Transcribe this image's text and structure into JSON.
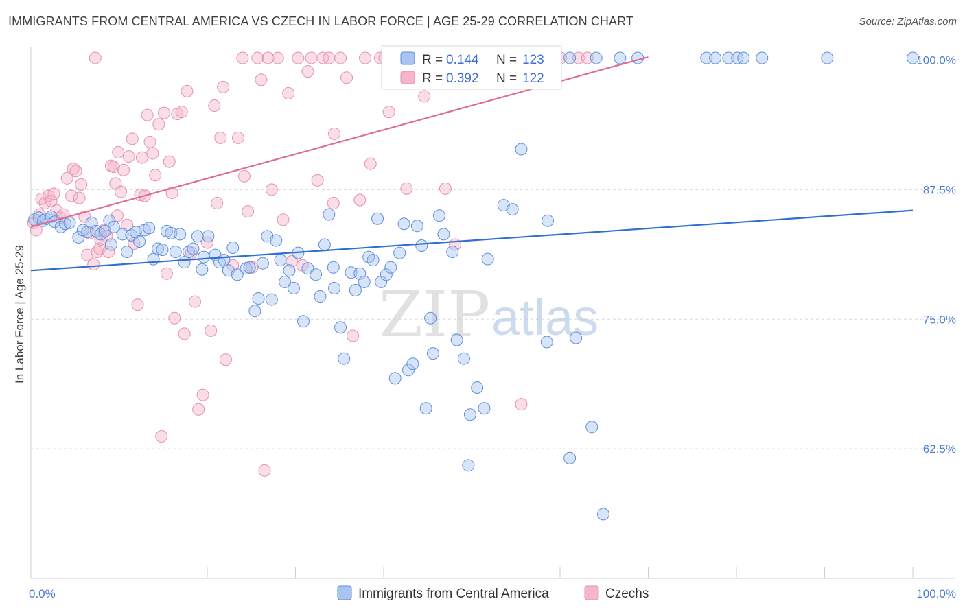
{
  "title": "IMMIGRANTS FROM CENTRAL AMERICA VS CZECH IN LABOR FORCE | AGE 25-29 CORRELATION CHART",
  "source": "Source: ZipAtlas.com",
  "watermark": {
    "zip": "ZIP",
    "atlas": "atlas"
  },
  "colors": {
    "blue_fill": "#a9c4ef",
    "blue_stroke": "#5e8fdc",
    "blue_line": "#2f6fd3",
    "pink_fill": "#f5b5ca",
    "pink_stroke": "#e88fad",
    "pink_line": "#e06b96",
    "grid": "#d9d9d9",
    "tick_text": "#4a7dd0"
  },
  "legend": {
    "rows": [
      {
        "r_label": "R = ",
        "r_value": "0.144",
        "n_label": "N = ",
        "n_value": "123",
        "series": "blue"
      },
      {
        "r_label": "R = ",
        "r_value": "0.392",
        "n_label": "N = ",
        "n_value": "122",
        "series": "pink"
      }
    ]
  },
  "chart_data": {
    "type": "scatter",
    "title": "IMMIGRANTS FROM CENTRAL AMERICA VS CZECH IN LABOR FORCE | AGE 25-29 CORRELATION CHART",
    "xlabel": "",
    "ylabel": "In Labor Force | Age 25-29",
    "xlim": [
      0,
      100
    ],
    "ylim": [
      50,
      100.5
    ],
    "x_tick_labels": [
      {
        "value": 0,
        "label": "0.0%"
      },
      {
        "value": 100,
        "label": "100.0%"
      }
    ],
    "y_tick_labels": [
      {
        "value": 100,
        "label": "100.0%"
      },
      {
        "value": 87.5,
        "label": "87.5%"
      },
      {
        "value": 75,
        "label": "75.0%"
      },
      {
        "value": 62.5,
        "label": "62.5%"
      }
    ],
    "grid": true,
    "legend_position": "top-center",
    "series": [
      {
        "name": "Immigrants from Central America",
        "color": "#a9c4ef",
        "R": 0.144,
        "N": 123,
        "trend": {
          "x0": 0,
          "y0": 79.7,
          "x1": 100,
          "y1": 85.5
        },
        "points": [
          [
            0.4,
            84.6
          ],
          [
            0.9,
            84.8
          ],
          [
            1.4,
            84.5
          ],
          [
            1.7,
            84.7
          ],
          [
            2.3,
            84.9
          ],
          [
            2.7,
            84.4
          ],
          [
            3.4,
            83.9
          ],
          [
            3.9,
            84.2
          ],
          [
            4.4,
            84.3
          ],
          [
            5.4,
            82.9
          ],
          [
            5.9,
            83.6
          ],
          [
            6.4,
            83.4
          ],
          [
            6.9,
            84.3
          ],
          [
            7.4,
            83.5
          ],
          [
            7.9,
            83.2
          ],
          [
            8.4,
            83.5
          ],
          [
            8.9,
            84.5
          ],
          [
            9.1,
            82.2
          ],
          [
            9.4,
            83.9
          ],
          [
            10.4,
            83.2
          ],
          [
            10.9,
            81.5
          ],
          [
            11.4,
            83.1
          ],
          [
            11.9,
            83.4
          ],
          [
            12.3,
            82.5
          ],
          [
            12.9,
            83.6
          ],
          [
            13.4,
            83.8
          ],
          [
            13.9,
            80.8
          ],
          [
            14.4,
            81.8
          ],
          [
            14.9,
            81.7
          ],
          [
            15.4,
            83.5
          ],
          [
            15.9,
            83.3
          ],
          [
            16.4,
            81.5
          ],
          [
            16.9,
            83.2
          ],
          [
            17.4,
            80.5
          ],
          [
            17.9,
            81.5
          ],
          [
            18.4,
            81.8
          ],
          [
            18.9,
            83
          ],
          [
            19.4,
            79.8
          ],
          [
            19.6,
            81
          ],
          [
            20.1,
            83
          ],
          [
            20.9,
            81.2
          ],
          [
            21.4,
            80.5
          ],
          [
            21.9,
            80.7
          ],
          [
            22.4,
            79.7
          ],
          [
            22.9,
            81.9
          ],
          [
            23.4,
            79.3
          ],
          [
            24.4,
            79.9
          ],
          [
            24.8,
            80
          ],
          [
            25.4,
            75.8
          ],
          [
            25.8,
            77
          ],
          [
            26.3,
            80.4
          ],
          [
            26.8,
            83
          ],
          [
            27.3,
            76.9
          ],
          [
            27.8,
            82.6
          ],
          [
            28.3,
            80.7
          ],
          [
            28.8,
            78.6
          ],
          [
            29.3,
            79.7
          ],
          [
            29.8,
            78
          ],
          [
            30.3,
            81.4
          ],
          [
            30.9,
            74.8
          ],
          [
            31.4,
            79.9
          ],
          [
            32.3,
            79.3
          ],
          [
            32.8,
            77.2
          ],
          [
            33.3,
            82.2
          ],
          [
            33.8,
            85.1
          ],
          [
            34.3,
            80
          ],
          [
            34.4,
            78
          ],
          [
            35.1,
            74.2
          ],
          [
            35.5,
            71.2
          ],
          [
            36.3,
            79.5
          ],
          [
            36.8,
            77.8
          ],
          [
            37.3,
            79.4
          ],
          [
            37.8,
            78.6
          ],
          [
            38.3,
            81
          ],
          [
            38.8,
            80.7
          ],
          [
            39.3,
            84.7
          ],
          [
            39.7,
            78.6
          ],
          [
            40.3,
            79.3
          ],
          [
            40.8,
            80
          ],
          [
            41.3,
            69.3
          ],
          [
            41.8,
            81.4
          ],
          [
            42.3,
            84.2
          ],
          [
            42.8,
            70.1
          ],
          [
            43.3,
            70.7
          ],
          [
            43.8,
            84
          ],
          [
            44.3,
            82.1
          ],
          [
            44.8,
            66.4
          ],
          [
            45.3,
            75.1
          ],
          [
            45.6,
            71.7
          ],
          [
            46.3,
            85
          ],
          [
            46.8,
            83.2
          ],
          [
            47.8,
            81.5
          ],
          [
            48.3,
            73
          ],
          [
            49.1,
            71.2
          ],
          [
            49.8,
            65.8
          ],
          [
            50.6,
            68.4
          ],
          [
            51.4,
            66.4
          ],
          [
            51.8,
            80.8
          ],
          [
            53.6,
            86
          ],
          [
            54.6,
            85.6
          ],
          [
            55.6,
            91.4
          ],
          [
            58.5,
            72.8
          ],
          [
            58.6,
            84.5
          ],
          [
            61.1,
            61.6
          ],
          [
            61.8,
            73.2
          ],
          [
            63.6,
            64.6
          ],
          [
            64.9,
            56.2
          ],
          [
            47.1,
            100.2
          ],
          [
            51.8,
            100.2
          ],
          [
            57.6,
            100.2
          ],
          [
            61.1,
            100.2
          ],
          [
            64.1,
            100.2
          ],
          [
            66.8,
            100.2
          ],
          [
            68.8,
            100.2
          ],
          [
            76.6,
            100.2
          ],
          [
            77.6,
            100.2
          ],
          [
            79.1,
            100.2
          ],
          [
            80.1,
            100.2
          ],
          [
            80.8,
            100.2
          ],
          [
            82.9,
            100.2
          ],
          [
            90.3,
            100.2
          ],
          [
            100,
            100.2
          ],
          [
            49.6,
            60.9
          ]
        ]
      },
      {
        "name": "Czechs",
        "color": "#f5b5ca",
        "R": 0.392,
        "N": 122,
        "trend": {
          "x0": 0,
          "y0": 83.9,
          "x1": 70,
          "y1": 100.3
        },
        "points": [
          [
            0.3,
            84.3
          ],
          [
            0.6,
            83.6
          ],
          [
            1,
            85.1
          ],
          [
            1.2,
            86.6
          ],
          [
            1.6,
            86.2
          ],
          [
            2,
            86.9
          ],
          [
            2.3,
            86.4
          ],
          [
            2.6,
            87.1
          ],
          [
            2.9,
            85.5
          ],
          [
            3.3,
            84.8
          ],
          [
            3.7,
            85.1
          ],
          [
            4.1,
            88.6
          ],
          [
            4.6,
            86.9
          ],
          [
            4.8,
            89.5
          ],
          [
            5.1,
            89.3
          ],
          [
            5.5,
            86.7
          ],
          [
            5.7,
            88
          ],
          [
            6.1,
            84.9
          ],
          [
            6.4,
            81.2
          ],
          [
            6.7,
            83.3
          ],
          [
            7.1,
            80.3
          ],
          [
            7.5,
            81.5
          ],
          [
            7.8,
            81.8
          ],
          [
            8.3,
            83.6
          ],
          [
            8.6,
            83
          ],
          [
            8.8,
            81.5
          ],
          [
            9.1,
            89.8
          ],
          [
            9.4,
            89.7
          ],
          [
            9.6,
            88.1
          ],
          [
            9.9,
            91.1
          ],
          [
            10.2,
            87.3
          ],
          [
            10.5,
            89.4
          ],
          [
            10.9,
            84.1
          ],
          [
            11.1,
            90.7
          ],
          [
            11.5,
            92.4
          ],
          [
            11.7,
            82.3
          ],
          [
            12.1,
            76.4
          ],
          [
            12.4,
            87
          ],
          [
            12.6,
            90.6
          ],
          [
            12.9,
            86.9
          ],
          [
            13.2,
            94.7
          ],
          [
            13.5,
            92.1
          ],
          [
            13.8,
            91
          ],
          [
            14.1,
            88.9
          ],
          [
            14.5,
            93.8
          ],
          [
            14.8,
            63.7
          ],
          [
            15.1,
            94.9
          ],
          [
            15.4,
            79.4
          ],
          [
            15.7,
            90.2
          ],
          [
            16,
            87.2
          ],
          [
            16.3,
            75.1
          ],
          [
            16.6,
            94.8
          ],
          [
            17.1,
            95
          ],
          [
            17.4,
            73.6
          ],
          [
            17.7,
            97
          ],
          [
            18.2,
            81.4
          ],
          [
            18.6,
            76.7
          ],
          [
            19,
            66.3
          ],
          [
            19.5,
            67.7
          ],
          [
            20,
            82.4
          ],
          [
            20.4,
            73.9
          ],
          [
            20.8,
            95.6
          ],
          [
            21.1,
            86.2
          ],
          [
            21.5,
            92.5
          ],
          [
            21.8,
            97.4
          ],
          [
            22.1,
            71.1
          ],
          [
            22.9,
            80.2
          ],
          [
            23.5,
            92.5
          ],
          [
            24,
            100.2
          ],
          [
            24.2,
            88.8
          ],
          [
            24.6,
            85.4
          ],
          [
            25.1,
            80
          ],
          [
            25.7,
            100.2
          ],
          [
            26.1,
            98.1
          ],
          [
            26.5,
            60.4
          ],
          [
            26.9,
            100.2
          ],
          [
            27.3,
            87.5
          ],
          [
            28,
            100.2
          ],
          [
            28.6,
            84.6
          ],
          [
            29.2,
            96.8
          ],
          [
            29.6,
            80.6
          ],
          [
            30.3,
            100.2
          ],
          [
            30.8,
            80.2
          ],
          [
            31.4,
            98.9
          ],
          [
            31.8,
            100.2
          ],
          [
            32.5,
            88.4
          ],
          [
            33.1,
            100.2
          ],
          [
            33.8,
            100.2
          ],
          [
            34.3,
            86.2
          ],
          [
            35.1,
            100.2
          ],
          [
            35.8,
            98.3
          ],
          [
            36.5,
            73.4
          ],
          [
            37.3,
            86.5
          ],
          [
            37.9,
            100.2
          ],
          [
            38.5,
            90
          ],
          [
            39.6,
            100.2
          ],
          [
            40.1,
            100.2
          ],
          [
            40.6,
            95
          ],
          [
            41.3,
            100.2
          ],
          [
            42.6,
            87.6
          ],
          [
            43.6,
            100.2
          ],
          [
            44.6,
            100.2
          ],
          [
            45.6,
            100.2
          ],
          [
            47,
            87.6
          ],
          [
            47.6,
            100.2
          ],
          [
            48.1,
            82.2
          ],
          [
            49,
            100.2
          ],
          [
            50.6,
            100.2
          ],
          [
            51.6,
            100.2
          ],
          [
            53,
            100.2
          ],
          [
            55.6,
            66.8
          ],
          [
            56.6,
            100.2
          ],
          [
            58.6,
            100.2
          ],
          [
            60.1,
            100.2
          ],
          [
            62.1,
            100.2
          ],
          [
            63.1,
            100.2
          ],
          [
            7.3,
            100.2
          ],
          [
            7.9,
            82.7
          ],
          [
            34.4,
            92.9
          ],
          [
            44.6,
            96.5
          ],
          [
            46.6,
            100.2
          ],
          [
            9.8,
            85
          ]
        ]
      }
    ]
  },
  "bottom_legend": [
    {
      "label": "Immigrants from Central America",
      "series": "blue"
    },
    {
      "label": "Czechs",
      "series": "pink"
    }
  ]
}
